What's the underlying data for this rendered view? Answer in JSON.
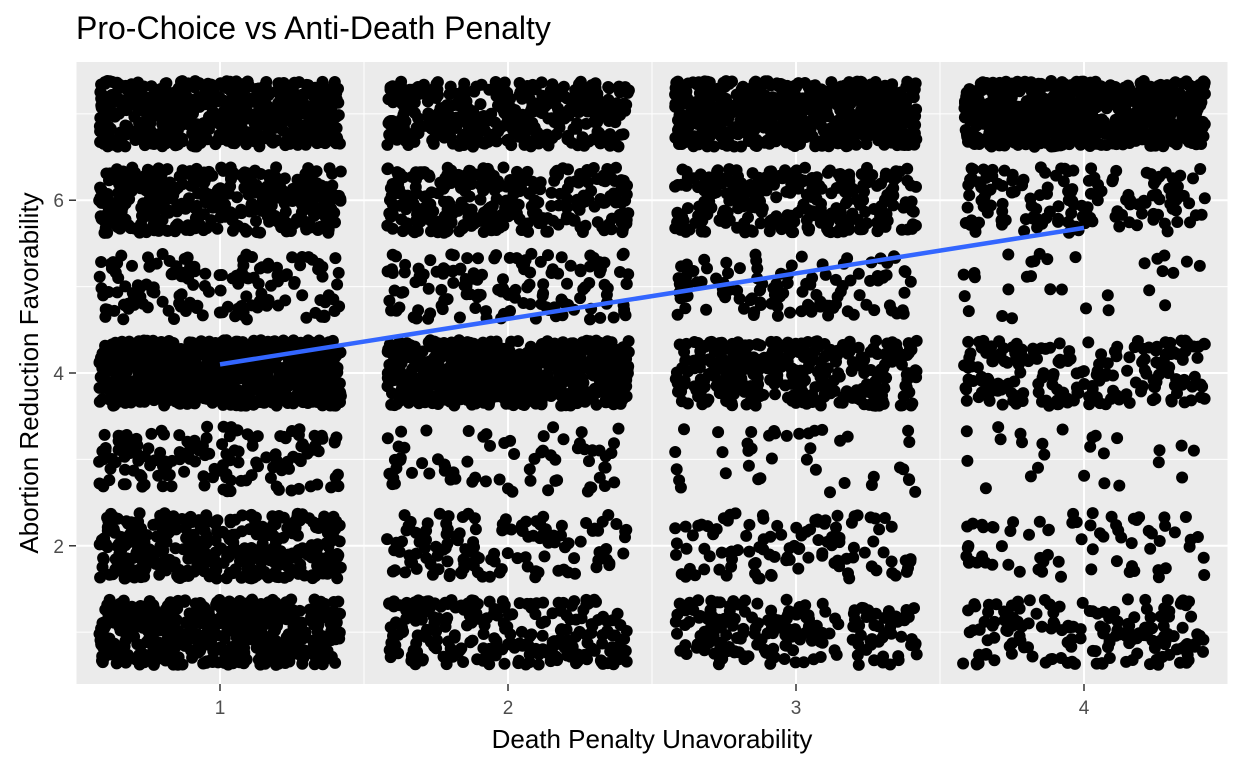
{
  "chart_data": {
    "type": "scatter",
    "title": "Pro-Choice vs Anti-Death Penalty",
    "xlabel": "Death Penalty Unavorability",
    "ylabel": "Abortion Reduction Favorability",
    "x_ticks": [
      "1",
      "2",
      "3",
      "4"
    ],
    "y_ticks": [
      "2",
      "4",
      "6"
    ],
    "xlim": [
      0.5,
      4.5
    ],
    "ylim": [
      0.4,
      7.6
    ],
    "grid": true,
    "jitter": {
      "x": 0.42,
      "y": 0.38
    },
    "point_groups": [
      {
        "x": 1,
        "y": 1,
        "count": 520
      },
      {
        "x": 1,
        "y": 2,
        "count": 380
      },
      {
        "x": 1,
        "y": 3,
        "count": 150
      },
      {
        "x": 1,
        "y": 4,
        "count": 800
      },
      {
        "x": 1,
        "y": 5,
        "count": 150
      },
      {
        "x": 1,
        "y": 6,
        "count": 380
      },
      {
        "x": 1,
        "y": 7,
        "count": 560
      },
      {
        "x": 2,
        "y": 1,
        "count": 240
      },
      {
        "x": 2,
        "y": 2,
        "count": 130
      },
      {
        "x": 2,
        "y": 3,
        "count": 70
      },
      {
        "x": 2,
        "y": 4,
        "count": 640
      },
      {
        "x": 2,
        "y": 5,
        "count": 140
      },
      {
        "x": 2,
        "y": 6,
        "count": 300
      },
      {
        "x": 2,
        "y": 7,
        "count": 370
      },
      {
        "x": 3,
        "y": 1,
        "count": 200
      },
      {
        "x": 3,
        "y": 2,
        "count": 110
      },
      {
        "x": 3,
        "y": 3,
        "count": 40
      },
      {
        "x": 3,
        "y": 4,
        "count": 330
      },
      {
        "x": 3,
        "y": 5,
        "count": 110
      },
      {
        "x": 3,
        "y": 6,
        "count": 280
      },
      {
        "x": 3,
        "y": 7,
        "count": 620
      },
      {
        "x": 4,
        "y": 1,
        "count": 160
      },
      {
        "x": 4,
        "y": 2,
        "count": 70
      },
      {
        "x": 4,
        "y": 3,
        "count": 25
      },
      {
        "x": 4,
        "y": 4,
        "count": 200
      },
      {
        "x": 4,
        "y": 5,
        "count": 30
      },
      {
        "x": 4,
        "y": 6,
        "count": 150
      },
      {
        "x": 4,
        "y": 7,
        "count": 720
      }
    ],
    "trend_line": {
      "x": [
        1,
        4
      ],
      "y": [
        4.1,
        5.68
      ],
      "color": "#3366ff"
    },
    "colors": {
      "panel_background": "#ebebeb",
      "grid": "#ffffff",
      "points": "#000000",
      "tick_text": "#4d4d4d",
      "axis_text": "#000000"
    }
  }
}
